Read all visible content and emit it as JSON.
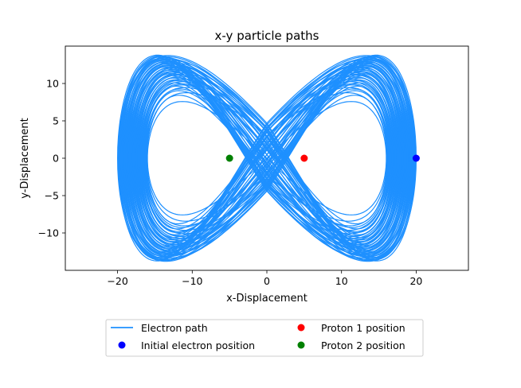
{
  "chart_data": {
    "type": "line",
    "title": "x-y particle paths",
    "xlabel": "x-Displacement",
    "ylabel": "y-Displacement",
    "xlim": [
      -27,
      27
    ],
    "ylim": [
      -15,
      15
    ],
    "xticks": [
      -20,
      -10,
      0,
      10,
      20
    ],
    "yticks": [
      -10,
      -5,
      0,
      5,
      10
    ],
    "xtick_labels": [
      "−20",
      "−10",
      "0",
      "10",
      "20"
    ],
    "ytick_labels": [
      "−10",
      "−5",
      "0",
      "5",
      "10"
    ],
    "grid": false,
    "legend_placement": "below plot, two columns",
    "series": [
      {
        "name": "Electron path",
        "kind": "line",
        "color": "#1e90ff",
        "description_extent": {
          "x": [
            -20,
            20
          ],
          "y": [
            -13.8,
            13.8
          ]
        },
        "lobes": 2
      },
      {
        "name": "Initial electron position",
        "kind": "scatter",
        "color": "#0000ff",
        "points": [
          [
            20,
            0
          ]
        ]
      },
      {
        "name": "Proton 1 position",
        "kind": "scatter",
        "color": "#ff0000",
        "points": [
          [
            5,
            0
          ]
        ]
      },
      {
        "name": "Proton 2 position",
        "kind": "scatter",
        "color": "#008000",
        "points": [
          [
            -5,
            0
          ]
        ]
      }
    ]
  }
}
